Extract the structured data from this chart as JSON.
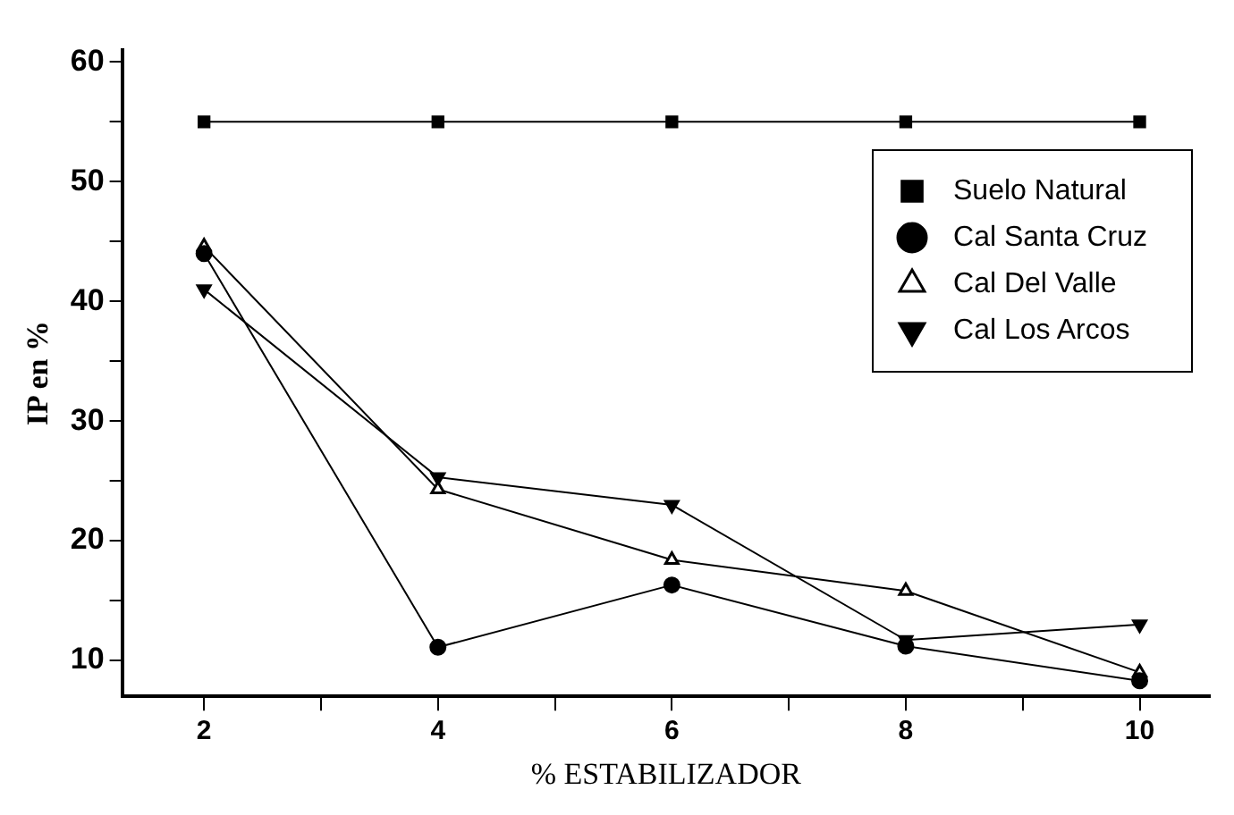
{
  "chart_data": {
    "type": "line",
    "xlabel": "% ESTABILIZADOR",
    "ylabel": "IP en %",
    "x": [
      2,
      4,
      6,
      8,
      10
    ],
    "series": [
      {
        "name": "Suelo Natural",
        "color": "#000000",
        "marker": "square",
        "values": [
          55,
          55,
          55,
          55,
          55
        ]
      },
      {
        "name": "Cal Santa Cruz",
        "color": "#000000",
        "marker": "circle",
        "values": [
          44,
          11.1,
          16.3,
          11.2,
          8.3
        ]
      },
      {
        "name": "Cal Del Valle",
        "color": "#000000",
        "marker": "triangle",
        "values": [
          44.6,
          24.3,
          18.4,
          15.8,
          9
        ]
      },
      {
        "name": "Cal Los Arcos",
        "color": "#000000",
        "marker": "triangle-down",
        "values": [
          41,
          25.3,
          23,
          11.7,
          13
        ]
      }
    ],
    "xlim": [
      1.3,
      10.6
    ],
    "xticks": [
      2,
      {
        "value": 3,
        "label": null
      },
      4,
      {
        "value": 5,
        "label": null
      },
      6,
      {
        "value": 7,
        "label": null
      },
      8,
      {
        "value": 9,
        "label": null
      },
      10
    ],
    "ylim": [
      7,
      61
    ],
    "yticks": [
      10,
      {
        "value": 15,
        "label": null
      },
      20,
      {
        "value": 25,
        "label": null
      },
      30,
      {
        "value": 35,
        "label": null
      },
      40,
      {
        "value": 45,
        "label": null
      },
      50,
      {
        "value": 55,
        "label": null
      },
      60
    ],
    "grid": false,
    "legend": "top right"
  }
}
